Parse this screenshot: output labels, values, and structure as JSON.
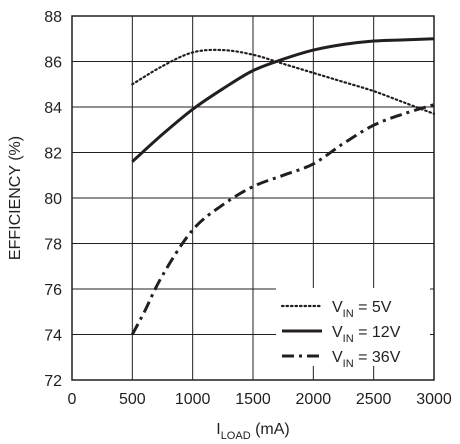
{
  "chart_data": {
    "type": "line",
    "title": "",
    "xlabel": {
      "main": "I",
      "sub": "LOAD",
      "suffix": " (mA)"
    },
    "ylabel": "EFFICIENCY (%)",
    "xlim": [
      0,
      3000
    ],
    "ylim": [
      72,
      88
    ],
    "x_ticks": [
      0,
      500,
      1000,
      1500,
      2000,
      2500,
      3000
    ],
    "y_ticks": [
      72,
      74,
      76,
      78,
      80,
      82,
      84,
      86,
      88
    ],
    "x_tick_labels": [
      "0",
      "500",
      "1000",
      "1500",
      "2000",
      "2500",
      "3000"
    ],
    "y_tick_labels": [
      "72",
      "74",
      "76",
      "78",
      "80",
      "82",
      "84",
      "86",
      "88"
    ],
    "grid": true,
    "legend_position": "bottom-right",
    "series": [
      {
        "name": "V_IN = 5V",
        "legend": {
          "main": "V",
          "sub": "IN",
          "suffix": " = 5V"
        },
        "style": "dotted",
        "x": [
          500,
          750,
          1000,
          1250,
          1500,
          1750,
          2000,
          2250,
          2500,
          2750,
          3000
        ],
        "y": [
          85.0,
          85.8,
          86.4,
          86.5,
          86.3,
          85.9,
          85.5,
          85.1,
          84.7,
          84.2,
          83.7
        ]
      },
      {
        "name": "V_IN = 12V",
        "legend": {
          "main": "V",
          "sub": "IN",
          "suffix": " = 12V"
        },
        "style": "solid",
        "x": [
          500,
          750,
          1000,
          1250,
          1500,
          1750,
          2000,
          2250,
          2500,
          2750,
          3000
        ],
        "y": [
          81.6,
          82.8,
          83.9,
          84.8,
          85.6,
          86.1,
          86.5,
          86.75,
          86.9,
          86.95,
          87.0
        ]
      },
      {
        "name": "V_IN = 36V",
        "legend": {
          "main": "V",
          "sub": "IN",
          "suffix": " = 36V"
        },
        "style": "dashdot",
        "x": [
          500,
          600,
          750,
          1000,
          1250,
          1500,
          1750,
          2000,
          2250,
          2500,
          2750,
          3000
        ],
        "y": [
          74.0,
          75.0,
          76.6,
          78.6,
          79.7,
          80.5,
          81.0,
          81.5,
          82.4,
          83.2,
          83.7,
          84.1
        ]
      }
    ]
  }
}
